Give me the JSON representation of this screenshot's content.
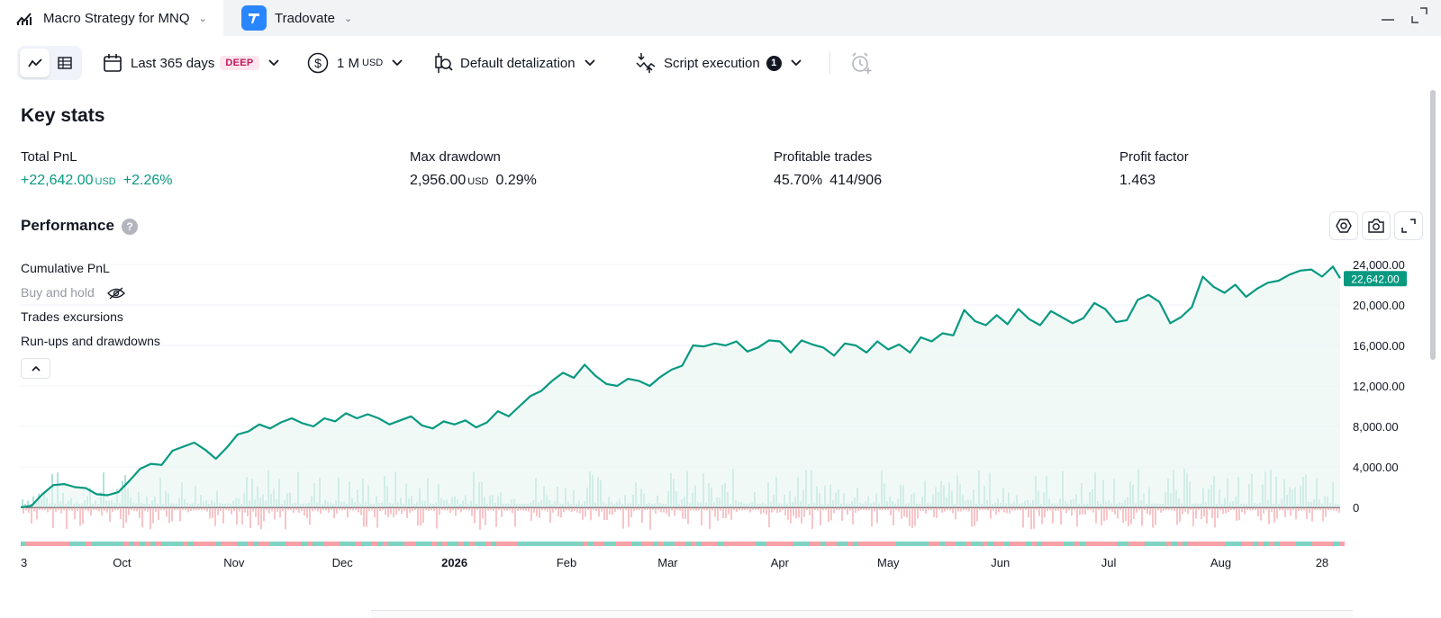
{
  "tabs": [
    {
      "label": "Macro Strategy for MNQ",
      "icon": "chart-line-icon"
    },
    {
      "label": "Tradovate",
      "icon": "tradovate-logo-icon"
    }
  ],
  "toolbar": {
    "range_label": "Last 365 days",
    "range_badge": "DEEP",
    "capital_value": "1 M",
    "capital_unit": "USD",
    "detalization_label": "Default detalization",
    "execution_label": "Script execution",
    "execution_count": "1"
  },
  "key_stats": {
    "title": "Key stats",
    "total_pnl": {
      "label": "Total PnL",
      "value": "+22,642.00",
      "unit": "USD",
      "pct": "+2.26%"
    },
    "max_drawdown": {
      "label": "Max drawdown",
      "value": "2,956.00",
      "unit": "USD",
      "pct": "0.29%"
    },
    "profitable_trades": {
      "label": "Profitable trades",
      "pct": "45.70%",
      "ratio": "414/906"
    },
    "profit_factor": {
      "label": "Profit factor",
      "value": "1.463"
    }
  },
  "performance": {
    "title": "Performance",
    "help": "?",
    "legend": [
      "Cumulative PnL",
      "Buy and hold",
      "Trades excursions",
      "Run-ups and drawdowns"
    ]
  },
  "colors": {
    "accent_green": "#089981",
    "loss_red": "#f23645",
    "badge_pink": "#c2185b"
  },
  "chart_data": {
    "type": "area",
    "series": [
      {
        "name": "Cumulative PnL",
        "x": [
          0,
          3,
          6,
          9,
          12,
          15,
          18,
          21,
          24,
          27,
          30,
          33,
          36,
          39,
          42,
          45,
          48,
          51,
          54,
          57,
          60,
          63,
          66,
          69,
          72,
          75,
          78,
          81,
          84,
          87,
          90,
          93,
          96,
          99,
          102,
          105,
          108,
          111,
          114,
          117,
          120,
          123,
          126,
          129,
          132,
          135,
          138,
          141,
          144,
          147,
          150,
          153,
          156,
          159,
          162,
          165,
          168,
          171,
          174,
          177,
          180,
          183,
          186,
          189,
          192,
          195,
          198,
          201,
          204,
          207,
          210,
          213,
          216,
          219,
          222,
          225,
          228,
          231,
          234,
          237,
          240,
          243,
          246,
          249,
          252,
          255,
          258,
          261,
          264,
          267,
          270,
          273,
          276,
          279,
          282,
          285,
          288,
          291,
          294,
          297,
          300,
          303,
          306,
          309,
          312,
          315,
          318,
          321,
          324,
          327,
          330,
          333,
          336,
          339,
          342,
          345,
          348,
          351,
          354,
          357,
          360,
          363,
          365
        ],
        "values": [
          0,
          150,
          1300,
          2200,
          2300,
          2000,
          1900,
          1300,
          1200,
          1500,
          2600,
          3800,
          4300,
          4200,
          5600,
          6000,
          6400,
          5700,
          4800,
          5900,
          7200,
          7500,
          8200,
          7800,
          8400,
          8800,
          8300,
          8000,
          8800,
          8500,
          9300,
          8800,
          9200,
          8800,
          8200,
          8600,
          9000,
          8100,
          7800,
          8500,
          8200,
          8600,
          7900,
          8400,
          9500,
          9000,
          10000,
          11000,
          11500,
          12500,
          13300,
          12800,
          14100,
          13000,
          12200,
          12000,
          12700,
          12500,
          12000,
          12900,
          13600,
          14000,
          16000,
          15900,
          16200,
          16000,
          16400,
          15400,
          15800,
          16500,
          16400,
          15300,
          16500,
          16100,
          15800,
          15000,
          16200,
          16000,
          15300,
          16400,
          15600,
          16100,
          15300,
          16800,
          16400,
          17200,
          17000,
          19500,
          18400,
          18000,
          19000,
          18100,
          19600,
          18600,
          18000,
          19400,
          18800,
          18200,
          18700,
          20200,
          19600,
          18300,
          18500,
          20500,
          21000,
          20300,
          18200,
          18800,
          19800,
          22800,
          21800,
          21200,
          22000,
          20800,
          21600,
          22200,
          22400,
          23000,
          23400,
          23500,
          22800,
          23800,
          22642
        ]
      }
    ],
    "ylim": [
      0,
      24000
    ],
    "yticks": [
      "24,000.00",
      "20,000.00",
      "16,000.00",
      "12,000.00",
      "8,000.00",
      "4,000.00",
      "0"
    ],
    "ytick_values": [
      24000,
      20000,
      16000,
      12000,
      8000,
      4000,
      0
    ],
    "xticks": [
      {
        "label": "3",
        "day": 0
      },
      {
        "label": "Oct",
        "day": 28
      },
      {
        "label": "Nov",
        "day": 59
      },
      {
        "label": "Dec",
        "day": 89
      },
      {
        "label": "2026",
        "day": 120,
        "bold": true
      },
      {
        "label": "Feb",
        "day": 151
      },
      {
        "label": "Mar",
        "day": 179
      },
      {
        "label": "Apr",
        "day": 210
      },
      {
        "label": "May",
        "day": 240
      },
      {
        "label": "Jun",
        "day": 271
      },
      {
        "label": "Jul",
        "day": 301
      },
      {
        "label": "Aug",
        "day": 332
      },
      {
        "label": "28",
        "day": 360
      }
    ],
    "last_value_label": "22,642.00"
  }
}
